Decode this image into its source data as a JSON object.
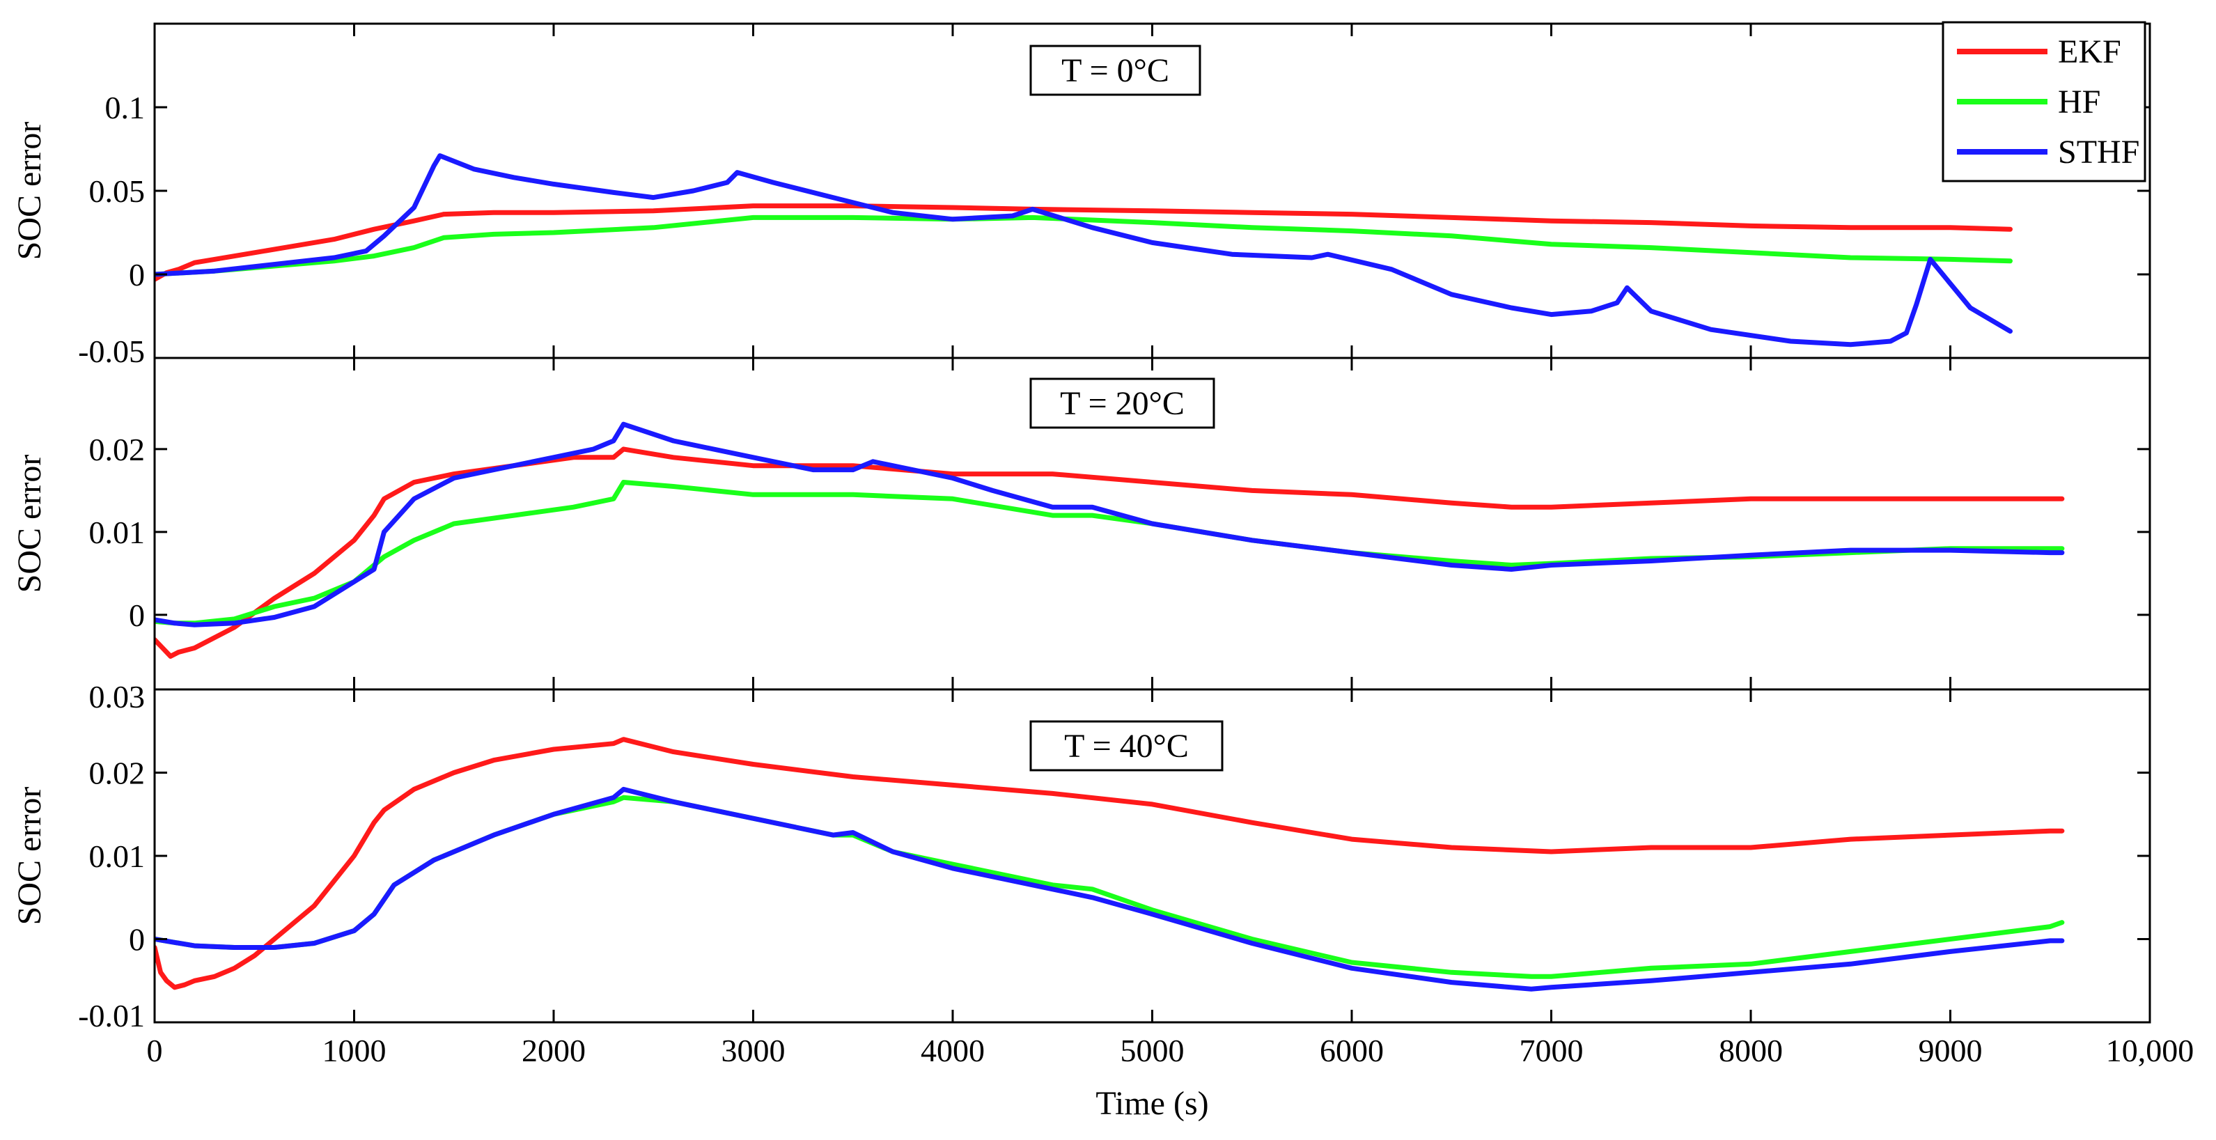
{
  "chart_data": [
    {
      "type": "line",
      "title": "T = 0°C",
      "xlabel": "",
      "ylabel": "SOC error",
      "xlim": [
        0,
        10000
      ],
      "ylim": [
        -0.05,
        0.15
      ],
      "yticks": [
        -0.05,
        0,
        0.05,
        0.1
      ],
      "ytick_labels": [
        "-0.05",
        "0",
        "0.05",
        "0.1"
      ],
      "series": [
        {
          "name": "EKF",
          "color": "#ff1a1a",
          "x": [
            0,
            60,
            120,
            200,
            300,
            500,
            700,
            900,
            1100,
            1300,
            1450,
            1700,
            2000,
            2500,
            3000,
            3500,
            4000,
            4400,
            5000,
            5500,
            6000,
            6500,
            7000,
            7500,
            8000,
            8500,
            9000,
            9300
          ],
          "y": [
            -0.003,
            0.001,
            0.003,
            0.007,
            0.009,
            0.013,
            0.017,
            0.021,
            0.027,
            0.032,
            0.036,
            0.037,
            0.037,
            0.038,
            0.041,
            0.041,
            0.04,
            0.039,
            0.038,
            0.037,
            0.036,
            0.034,
            0.032,
            0.031,
            0.029,
            0.028,
            0.028,
            0.027
          ]
        },
        {
          "name": "HF",
          "color": "#1aff1a",
          "x": [
            0,
            300,
            600,
            900,
            1100,
            1300,
            1450,
            1700,
            2000,
            2500,
            3000,
            3500,
            4000,
            4400,
            5000,
            5500,
            6000,
            6500,
            7000,
            7500,
            8000,
            8500,
            9000,
            9300
          ],
          "y": [
            0,
            0.002,
            0.005,
            0.008,
            0.011,
            0.016,
            0.022,
            0.024,
            0.025,
            0.028,
            0.034,
            0.034,
            0.033,
            0.034,
            0.031,
            0.028,
            0.026,
            0.023,
            0.018,
            0.016,
            0.013,
            0.01,
            0.009,
            0.008
          ]
        },
        {
          "name": "STHF",
          "color": "#1a1aff",
          "x": [
            0,
            300,
            600,
            900,
            1060,
            1150,
            1300,
            1400,
            1430,
            1600,
            1800,
            2000,
            2300,
            2500,
            2700,
            2870,
            2920,
            3100,
            3400,
            3700,
            4000,
            4300,
            4400,
            4700,
            5000,
            5400,
            5800,
            5880,
            6200,
            6500,
            6800,
            7000,
            7200,
            7330,
            7380,
            7500,
            7800,
            8200,
            8500,
            8700,
            8780,
            8830,
            8900,
            9100,
            9300
          ],
          "y": [
            0,
            0.002,
            0.006,
            0.01,
            0.014,
            0.023,
            0.04,
            0.065,
            0.071,
            0.063,
            0.058,
            0.054,
            0.049,
            0.046,
            0.05,
            0.055,
            0.061,
            0.055,
            0.046,
            0.037,
            0.033,
            0.035,
            0.039,
            0.028,
            0.019,
            0.012,
            0.01,
            0.012,
            0.003,
            -0.012,
            -0.02,
            -0.024,
            -0.022,
            -0.017,
            -0.008,
            -0.022,
            -0.033,
            -0.04,
            -0.042,
            -0.04,
            -0.035,
            -0.018,
            0.009,
            -0.02,
            -0.034
          ]
        }
      ]
    },
    {
      "type": "line",
      "title": "T = 20°C",
      "xlabel": "",
      "ylabel": "SOC error",
      "xlim": [
        0,
        10000
      ],
      "ylim": [
        -0.009,
        0.031
      ],
      "yticks": [
        0,
        0.01,
        0.02
      ],
      "ytick_labels": [
        "0",
        "0.01",
        "0.02"
      ],
      "series": [
        {
          "name": "EKF",
          "color": "#ff1a1a",
          "x": [
            0,
            40,
            80,
            120,
            200,
            400,
            600,
            800,
            1000,
            1100,
            1150,
            1300,
            1500,
            1800,
            2100,
            2300,
            2350,
            2600,
            3000,
            3500,
            4000,
            4500,
            5000,
            5500,
            6000,
            6500,
            6800,
            7000,
            7500,
            8000,
            8500,
            9000,
            9500,
            9560
          ],
          "y": [
            -0.003,
            -0.004,
            -0.005,
            -0.0045,
            -0.004,
            -0.0015,
            0.002,
            0.005,
            0.009,
            0.012,
            0.014,
            0.016,
            0.017,
            0.018,
            0.019,
            0.019,
            0.02,
            0.019,
            0.018,
            0.018,
            0.017,
            0.017,
            0.016,
            0.015,
            0.0145,
            0.0135,
            0.013,
            0.013,
            0.0135,
            0.014,
            0.014,
            0.014,
            0.014,
            0.014
          ]
        },
        {
          "name": "HF",
          "color": "#1aff1a",
          "x": [
            0,
            100,
            200,
            400,
            600,
            800,
            1000,
            1100,
            1150,
            1300,
            1500,
            1800,
            2100,
            2300,
            2350,
            2600,
            3000,
            3500,
            4000,
            4500,
            4700,
            5000,
            5500,
            6000,
            6500,
            6800,
            7000,
            7500,
            8000,
            8500,
            9000,
            9500,
            9560
          ],
          "y": [
            -0.0008,
            -0.001,
            -0.001,
            -0.0005,
            0.001,
            0.002,
            0.004,
            0.006,
            0.007,
            0.009,
            0.011,
            0.012,
            0.013,
            0.014,
            0.016,
            0.0155,
            0.0145,
            0.0145,
            0.014,
            0.012,
            0.012,
            0.011,
            0.009,
            0.0075,
            0.0065,
            0.006,
            0.0062,
            0.0068,
            0.007,
            0.0075,
            0.008,
            0.008,
            0.008
          ]
        },
        {
          "name": "STHF",
          "color": "#1a1aff",
          "x": [
            0,
            100,
            200,
            400,
            600,
            800,
            1000,
            1100,
            1150,
            1300,
            1500,
            1700,
            2000,
            2200,
            2300,
            2350,
            2600,
            3000,
            3300,
            3500,
            3600,
            4000,
            4200,
            4500,
            4700,
            5000,
            5500,
            6000,
            6500,
            6800,
            7000,
            7500,
            8000,
            8500,
            9000,
            9500,
            9560
          ],
          "y": [
            -0.0006,
            -0.001,
            -0.0012,
            -0.001,
            -0.0003,
            0.001,
            0.004,
            0.0055,
            0.01,
            0.014,
            0.0165,
            0.0175,
            0.019,
            0.02,
            0.021,
            0.023,
            0.021,
            0.019,
            0.0175,
            0.0175,
            0.0185,
            0.0165,
            0.015,
            0.013,
            0.013,
            0.011,
            0.009,
            0.0075,
            0.006,
            0.0055,
            0.006,
            0.0065,
            0.0072,
            0.0078,
            0.0078,
            0.0075,
            0.0075
          ]
        }
      ]
    },
    {
      "type": "line",
      "title": "T = 40°C",
      "xlabel": "Time (s)",
      "ylabel": "SOC error",
      "xlim": [
        0,
        10000
      ],
      "ylim": [
        -0.01,
        0.03
      ],
      "yticks": [
        -0.01,
        0,
        0.01,
        0.02,
        0.03
      ],
      "ytick_labels": [
        "-0.01",
        "0",
        "0.01",
        "0.02",
        "0.03"
      ],
      "xticks": [
        0,
        1000,
        2000,
        3000,
        4000,
        5000,
        6000,
        7000,
        8000,
        9000,
        10000
      ],
      "xtick_labels": [
        "0",
        "1000",
        "2000",
        "3000",
        "4000",
        "5000",
        "6000",
        "7000",
        "8000",
        "9000",
        "10,000"
      ],
      "series": [
        {
          "name": "EKF",
          "color": "#ff1a1a",
          "x": [
            0,
            30,
            60,
            100,
            150,
            200,
            300,
            400,
            500,
            600,
            800,
            1000,
            1100,
            1150,
            1300,
            1500,
            1700,
            2000,
            2300,
            2350,
            2600,
            3000,
            3500,
            4000,
            4500,
            5000,
            5500,
            6000,
            6500,
            7000,
            7500,
            8000,
            8500,
            9000,
            9500,
            9560
          ],
          "y": [
            -0.001,
            -0.004,
            -0.005,
            -0.0058,
            -0.0055,
            -0.005,
            -0.0045,
            -0.0035,
            -0.002,
            0,
            0.004,
            0.01,
            0.014,
            0.0155,
            0.018,
            0.02,
            0.0215,
            0.0228,
            0.0235,
            0.024,
            0.0225,
            0.021,
            0.0195,
            0.0185,
            0.0175,
            0.0162,
            0.014,
            0.012,
            0.011,
            0.0105,
            0.011,
            0.011,
            0.012,
            0.0125,
            0.013,
            0.013
          ]
        },
        {
          "name": "HF",
          "color": "#1aff1a",
          "x": [
            0,
            200,
            400,
            600,
            800,
            1000,
            1100,
            1200,
            1400,
            1700,
            2000,
            2300,
            2350,
            2600,
            3000,
            3400,
            3500,
            3700,
            4000,
            4500,
            4700,
            5000,
            5500,
            6000,
            6500,
            6900,
            7000,
            7500,
            8000,
            8500,
            9000,
            9500,
            9560
          ],
          "y": [
            0,
            -0.0008,
            -0.001,
            -0.001,
            -0.0005,
            0.001,
            0.003,
            0.0065,
            0.0095,
            0.0125,
            0.015,
            0.0165,
            0.017,
            0.0165,
            0.0145,
            0.0125,
            0.0125,
            0.0105,
            0.009,
            0.0065,
            0.006,
            0.0035,
            0,
            -0.0028,
            -0.004,
            -0.0045,
            -0.0045,
            -0.0035,
            -0.003,
            -0.0015,
            0,
            0.0015,
            0.002
          ]
        },
        {
          "name": "STHF",
          "color": "#1a1aff",
          "x": [
            0,
            200,
            400,
            600,
            800,
            1000,
            1100,
            1200,
            1400,
            1700,
            2000,
            2300,
            2350,
            2600,
            3000,
            3400,
            3500,
            3700,
            4000,
            4500,
            4700,
            5000,
            5500,
            6000,
            6500,
            6900,
            7000,
            7500,
            8000,
            8500,
            9000,
            9500,
            9560
          ],
          "y": [
            0,
            -0.0008,
            -0.001,
            -0.001,
            -0.0005,
            0.001,
            0.003,
            0.0065,
            0.0095,
            0.0125,
            0.015,
            0.017,
            0.018,
            0.0165,
            0.0145,
            0.0125,
            0.0128,
            0.0105,
            0.0085,
            0.006,
            0.005,
            0.003,
            -0.0005,
            -0.0035,
            -0.0052,
            -0.006,
            -0.0058,
            -0.005,
            -0.004,
            -0.003,
            -0.0015,
            -0.0002,
            -0.0002
          ]
        }
      ]
    }
  ],
  "legend": {
    "placement": "top-right",
    "entries": [
      {
        "name": "EKF",
        "color": "#ff1a1a"
      },
      {
        "name": "HF",
        "color": "#1aff1a"
      },
      {
        "name": "STHF",
        "color": "#1a1aff"
      }
    ]
  }
}
